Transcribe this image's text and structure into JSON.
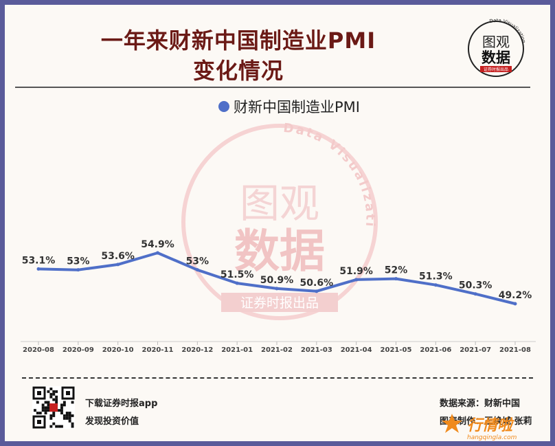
{
  "header": {
    "title_line1": "一年来财新中国制造业PMI",
    "title_line2": "变化情况"
  },
  "logo": {
    "line1": "图观",
    "line2": "数据",
    "ribbon": "证券时报出品",
    "arc_text": "Data Visualization"
  },
  "watermark": {
    "line1": "图观",
    "line2": "数据",
    "ribbon": "证券时报出品",
    "arc_text": "Data Visualization"
  },
  "chart_data": {
    "type": "line",
    "categories": [
      "2020-08",
      "2020-09",
      "2020-10",
      "2020-11",
      "2020-12",
      "2021-01",
      "2021-02",
      "2021-03",
      "2021-04",
      "2021-05",
      "2021-06",
      "2021-07",
      "2021-08"
    ],
    "series": [
      {
        "name": "财新中国制造业PMI",
        "values": [
          53.1,
          53.0,
          53.6,
          54.9,
          53.0,
          51.5,
          50.9,
          50.6,
          51.9,
          52.0,
          51.3,
          50.3,
          49.2
        ],
        "labels": [
          "53.1%",
          "53%",
          "53.6%",
          "54.9%",
          "53%",
          "51.5%",
          "50.9%",
          "50.6%",
          "51.9%",
          "52%",
          "51.3%",
          "50.3%",
          "49.2%"
        ],
        "color": "#4f6fc8"
      }
    ],
    "title": "一年来财新中国制造业PMI变化情况",
    "legend": "top-center",
    "grid": false
  },
  "footer": {
    "qr_icon": "qr-code-icon",
    "app_line1": "下载证券时报app",
    "app_line2": "发现投资价值",
    "source": "数据来源：财新中国",
    "credit": "图表制作：王焕城 张莉",
    "brand_text": "行情啦",
    "brand_url": "hangqingla.com",
    "brand_color": "#f08a1c"
  }
}
